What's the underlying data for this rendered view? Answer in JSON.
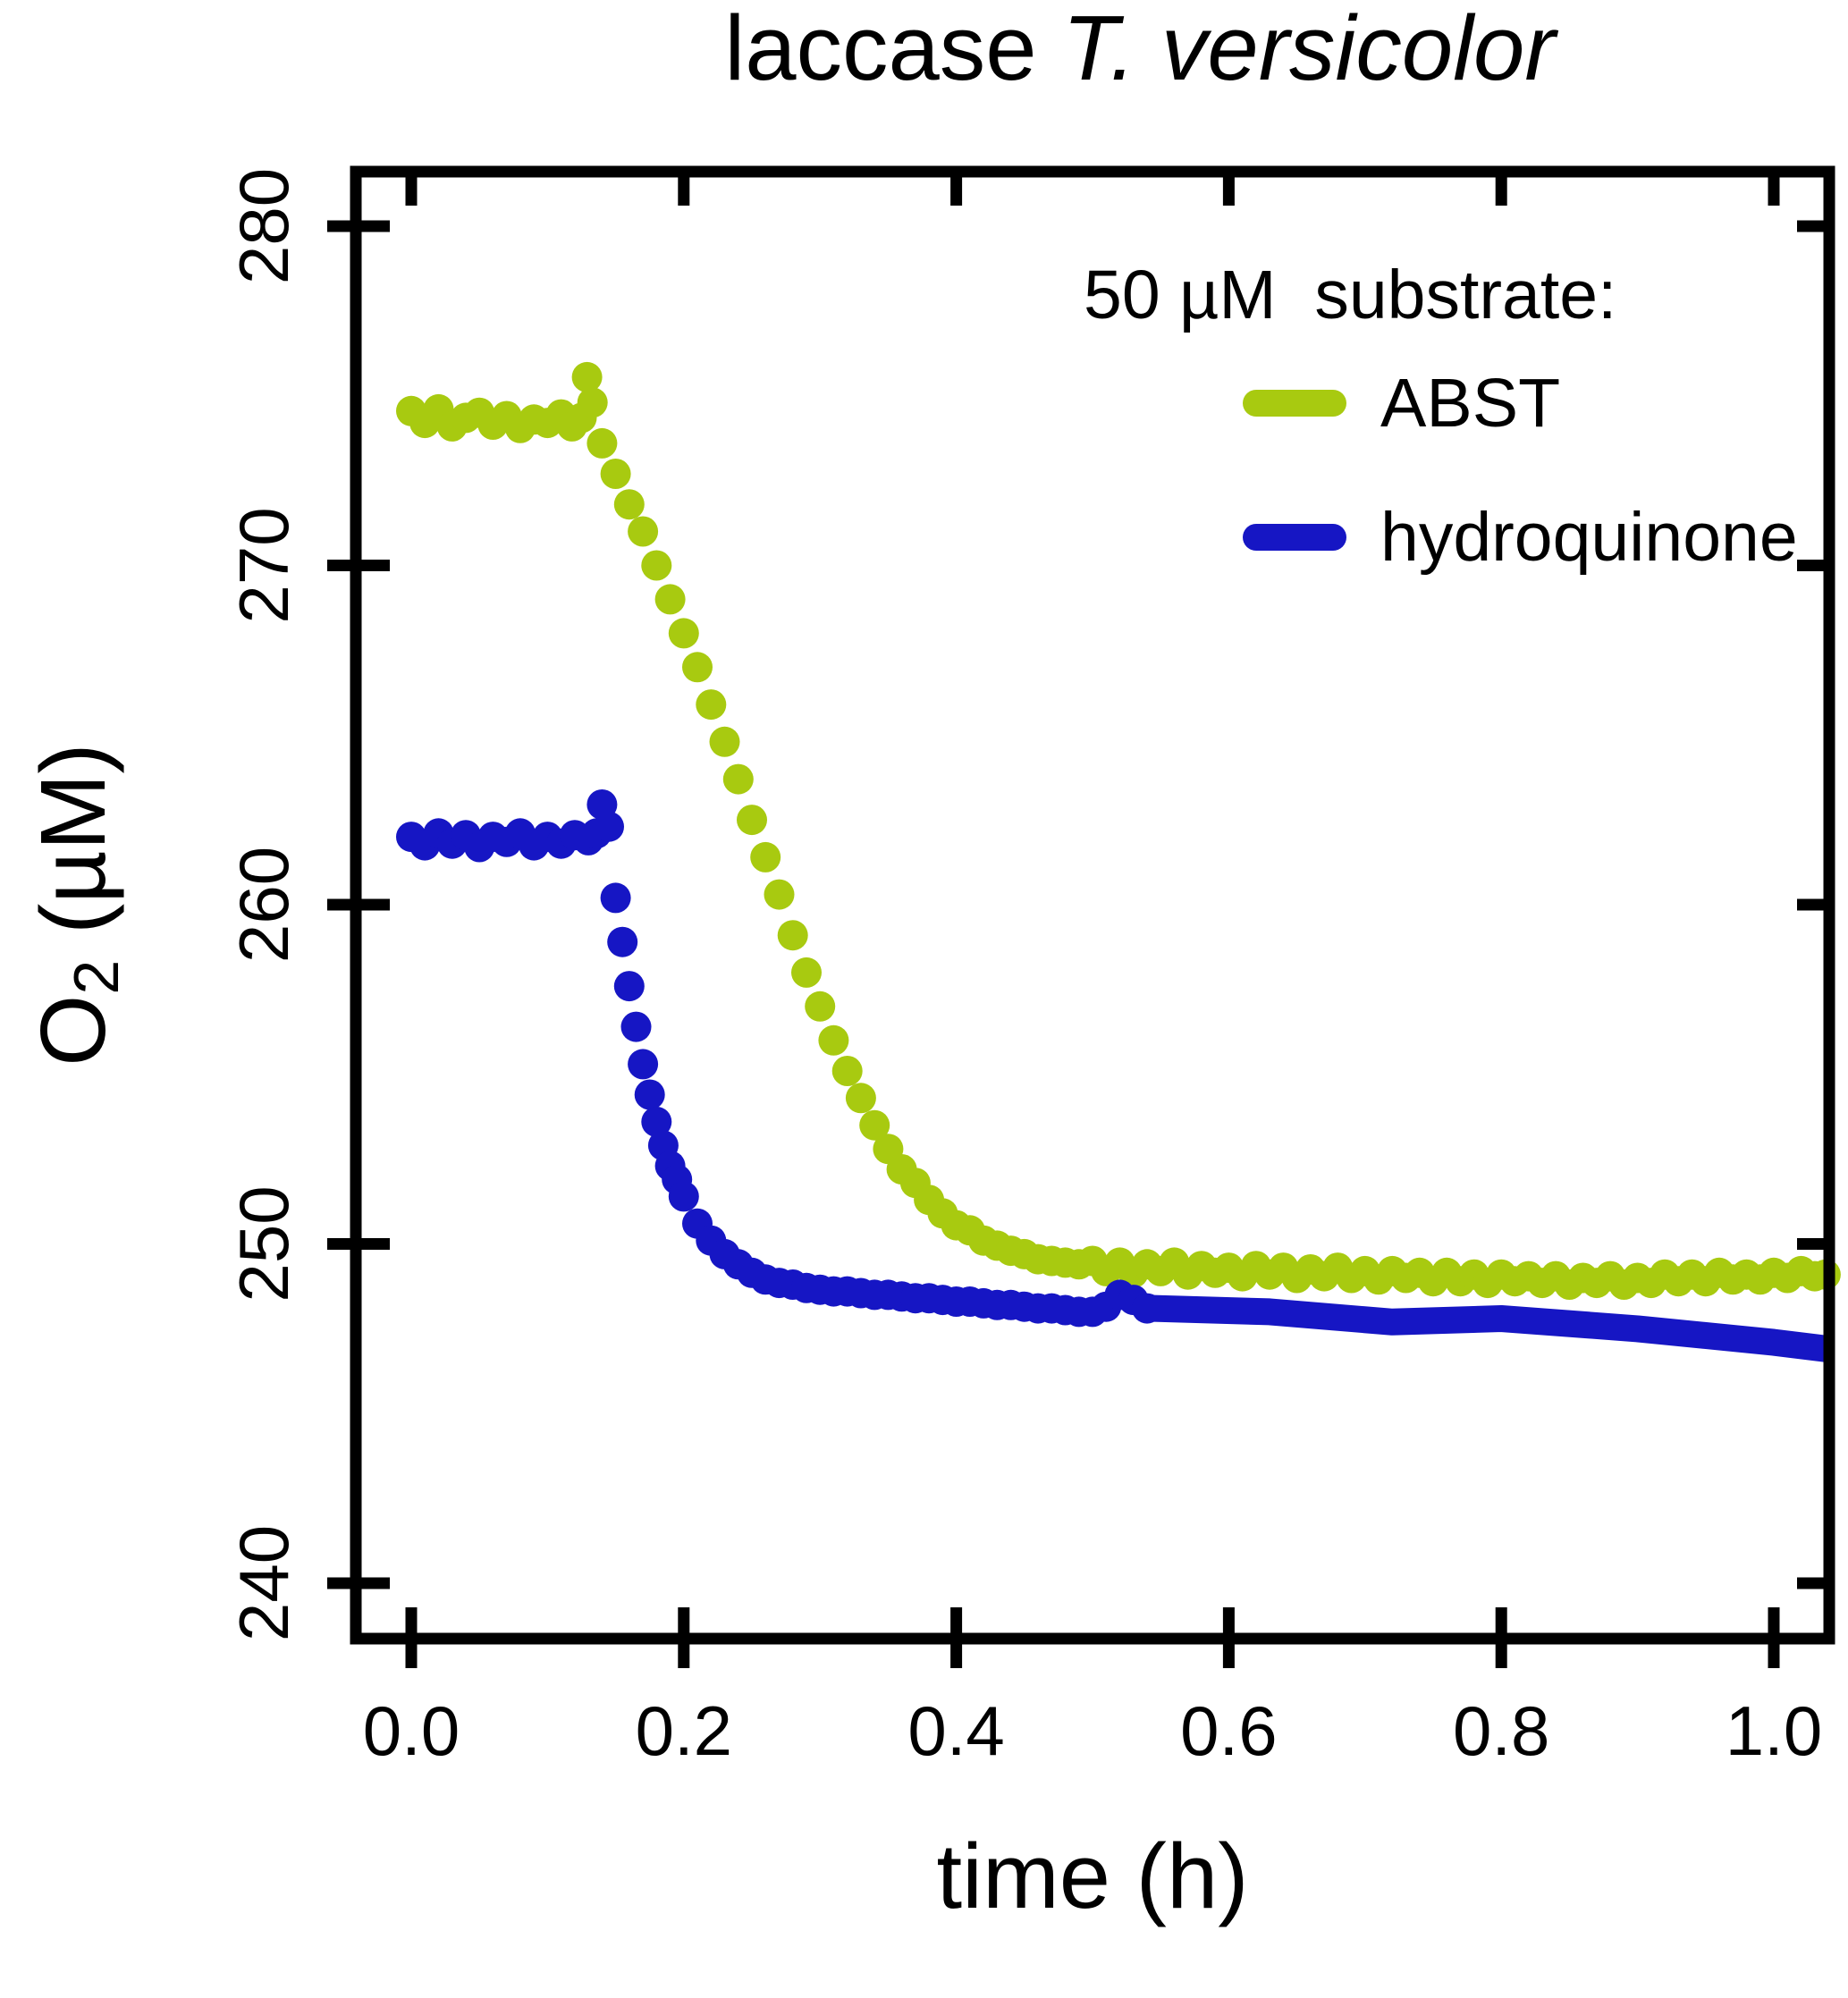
{
  "title": {
    "regular": "laccase ",
    "italic": "T. versicolor"
  },
  "axes": {
    "x_label": "time (h)",
    "y_label_main": "O",
    "y_label_sub": "2",
    "y_label_rest": " (µM)"
  },
  "legend": {
    "title": "50 µM  substrate:",
    "items": [
      {
        "label": "ABST",
        "color": "#a8ca10"
      },
      {
        "label": "hydroquinone",
        "color": "#1616c4"
      }
    ]
  },
  "frame_color": "#000000",
  "chart_data": {
    "type": "line",
    "title": "laccase T. versicolor",
    "xlabel": "time (h)",
    "ylabel": "O2 (µM)",
    "xlim": [
      -0.04,
      1.04
    ],
    "ylim": [
      238.4,
      281.6
    ],
    "x_ticks": [
      0.0,
      0.2,
      0.4,
      0.6,
      0.8,
      1.0
    ],
    "x_tick_labels": [
      "0.0",
      "0.2",
      "0.4",
      "0.6",
      "0.8",
      "1.0"
    ],
    "y_ticks": [
      240,
      250,
      260,
      270,
      280
    ],
    "y_tick_labels": [
      "240",
      "250",
      "260",
      "270",
      "280"
    ],
    "grid": false,
    "legend_position": "top-right",
    "series": [
      {
        "name": "ABST",
        "color": "#a8ca10",
        "style": "dots",
        "marker_radius": 17,
        "points": [
          [
            0.0,
            274.55
          ],
          [
            0.01,
            274.2
          ],
          [
            0.02,
            274.6
          ],
          [
            0.03,
            274.1
          ],
          [
            0.04,
            274.35
          ],
          [
            0.05,
            274.5
          ],
          [
            0.06,
            274.15
          ],
          [
            0.07,
            274.4
          ],
          [
            0.08,
            274.05
          ],
          [
            0.09,
            274.3
          ],
          [
            0.1,
            274.2
          ],
          [
            0.11,
            274.45
          ],
          [
            0.118,
            274.1
          ],
          [
            0.125,
            274.35
          ],
          [
            0.129,
            275.55
          ],
          [
            0.133,
            274.8
          ],
          [
            0.14,
            273.6
          ],
          [
            0.15,
            272.7
          ],
          [
            0.16,
            271.8
          ],
          [
            0.17,
            271.0
          ],
          [
            0.18,
            270.0
          ],
          [
            0.19,
            269.0
          ],
          [
            0.2,
            268.0
          ],
          [
            0.21,
            267.0
          ],
          [
            0.22,
            265.9
          ],
          [
            0.23,
            264.8
          ],
          [
            0.24,
            263.7
          ],
          [
            0.25,
            262.5
          ],
          [
            0.26,
            261.4
          ],
          [
            0.27,
            260.3
          ],
          [
            0.28,
            259.1
          ],
          [
            0.29,
            258.0
          ],
          [
            0.3,
            257.0
          ],
          [
            0.31,
            256.0
          ],
          [
            0.32,
            255.1
          ],
          [
            0.33,
            254.3
          ],
          [
            0.34,
            253.5
          ],
          [
            0.35,
            252.8
          ],
          [
            0.36,
            252.2
          ],
          [
            0.37,
            251.8
          ],
          [
            0.38,
            251.3
          ],
          [
            0.39,
            250.9
          ],
          [
            0.4,
            250.55
          ],
          [
            0.41,
            250.4
          ],
          [
            0.42,
            250.1
          ],
          [
            0.43,
            249.95
          ],
          [
            0.44,
            249.8
          ],
          [
            0.45,
            249.7
          ],
          [
            0.46,
            249.55
          ],
          [
            0.47,
            249.5
          ],
          [
            0.48,
            249.45
          ],
          [
            0.49,
            249.4
          ],
          [
            0.5,
            249.5
          ],
          [
            0.51,
            249.2
          ],
          [
            0.52,
            249.45
          ],
          [
            0.53,
            249.15
          ],
          [
            0.54,
            249.4
          ],
          [
            0.55,
            249.2
          ],
          [
            0.56,
            249.45
          ],
          [
            0.57,
            249.1
          ],
          [
            0.58,
            249.35
          ],
          [
            0.59,
            249.15
          ],
          [
            0.6,
            249.3
          ],
          [
            0.61,
            249.05
          ],
          [
            0.62,
            249.35
          ],
          [
            0.63,
            249.1
          ],
          [
            0.64,
            249.3
          ],
          [
            0.65,
            249.0
          ],
          [
            0.66,
            249.25
          ],
          [
            0.67,
            249.05
          ],
          [
            0.68,
            249.3
          ],
          [
            0.69,
            249.0
          ],
          [
            0.7,
            249.2
          ],
          [
            0.71,
            248.95
          ],
          [
            0.72,
            249.2
          ],
          [
            0.73,
            249.0
          ],
          [
            0.74,
            249.15
          ],
          [
            0.75,
            248.9
          ],
          [
            0.76,
            249.15
          ],
          [
            0.77,
            248.9
          ],
          [
            0.78,
            249.1
          ],
          [
            0.79,
            248.85
          ],
          [
            0.8,
            249.1
          ],
          [
            0.81,
            248.9
          ],
          [
            0.82,
            249.05
          ],
          [
            0.83,
            248.85
          ],
          [
            0.84,
            249.05
          ],
          [
            0.85,
            248.8
          ],
          [
            0.86,
            249.0
          ],
          [
            0.87,
            248.85
          ],
          [
            0.88,
            249.05
          ],
          [
            0.89,
            248.8
          ],
          [
            0.9,
            249.0
          ],
          [
            0.91,
            248.85
          ],
          [
            0.92,
            249.1
          ],
          [
            0.93,
            248.9
          ],
          [
            0.94,
            249.1
          ],
          [
            0.95,
            248.9
          ],
          [
            0.96,
            249.15
          ],
          [
            0.97,
            248.95
          ],
          [
            0.98,
            249.1
          ],
          [
            0.99,
            248.95
          ],
          [
            1.0,
            249.15
          ],
          [
            1.01,
            249.0
          ],
          [
            1.02,
            249.2
          ],
          [
            1.03,
            249.05
          ],
          [
            1.038,
            249.1
          ]
        ]
      },
      {
        "name": "hydroquinone",
        "color": "#1616c4",
        "style": "dots-then-line",
        "marker_radius": 17,
        "line_width": 30,
        "dots_until": 0.542,
        "points": [
          [
            0.0,
            262.0
          ],
          [
            0.01,
            261.75
          ],
          [
            0.02,
            262.1
          ],
          [
            0.03,
            261.8
          ],
          [
            0.04,
            262.05
          ],
          [
            0.05,
            261.7
          ],
          [
            0.06,
            262.0
          ],
          [
            0.07,
            261.85
          ],
          [
            0.08,
            262.1
          ],
          [
            0.09,
            261.75
          ],
          [
            0.1,
            262.0
          ],
          [
            0.11,
            261.8
          ],
          [
            0.12,
            262.05
          ],
          [
            0.13,
            261.9
          ],
          [
            0.136,
            262.1
          ],
          [
            0.14,
            262.95
          ],
          [
            0.145,
            262.3
          ],
          [
            0.15,
            260.2
          ],
          [
            0.155,
            258.9
          ],
          [
            0.16,
            257.6
          ],
          [
            0.165,
            256.4
          ],
          [
            0.17,
            255.3
          ],
          [
            0.175,
            254.4
          ],
          [
            0.18,
            253.6
          ],
          [
            0.185,
            252.9
          ],
          [
            0.19,
            252.3
          ],
          [
            0.195,
            251.9
          ],
          [
            0.2,
            251.4
          ],
          [
            0.21,
            250.6
          ],
          [
            0.22,
            250.1
          ],
          [
            0.23,
            249.7
          ],
          [
            0.24,
            249.4
          ],
          [
            0.25,
            249.15
          ],
          [
            0.26,
            248.95
          ],
          [
            0.27,
            248.85
          ],
          [
            0.28,
            248.8
          ],
          [
            0.29,
            248.7
          ],
          [
            0.3,
            248.65
          ],
          [
            0.31,
            248.6
          ],
          [
            0.32,
            248.6
          ],
          [
            0.33,
            248.55
          ],
          [
            0.34,
            248.5
          ],
          [
            0.35,
            248.5
          ],
          [
            0.36,
            248.45
          ],
          [
            0.37,
            248.4
          ],
          [
            0.38,
            248.4
          ],
          [
            0.39,
            248.35
          ],
          [
            0.4,
            248.3
          ],
          [
            0.41,
            248.3
          ],
          [
            0.42,
            248.25
          ],
          [
            0.43,
            248.2
          ],
          [
            0.44,
            248.2
          ],
          [
            0.45,
            248.15
          ],
          [
            0.46,
            248.1
          ],
          [
            0.47,
            248.1
          ],
          [
            0.48,
            248.05
          ],
          [
            0.49,
            248.0
          ],
          [
            0.5,
            248.0
          ],
          [
            0.51,
            248.15
          ],
          [
            0.52,
            248.5
          ],
          [
            0.53,
            248.35
          ],
          [
            0.54,
            248.1
          ],
          [
            0.545,
            248.1
          ],
          [
            0.63,
            248.0
          ],
          [
            0.72,
            247.7
          ],
          [
            0.8,
            247.8
          ],
          [
            0.9,
            247.5
          ],
          [
            1.0,
            247.1
          ],
          [
            1.04,
            246.9
          ]
        ]
      }
    ]
  }
}
